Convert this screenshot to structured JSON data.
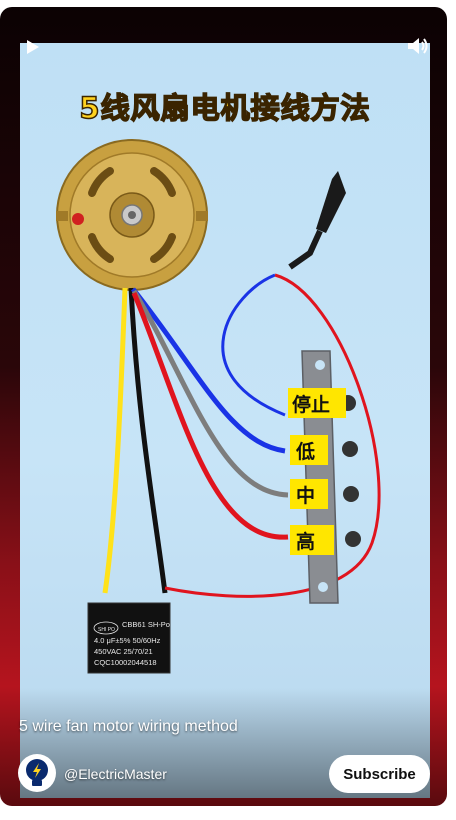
{
  "video": {
    "title_art": "5线风扇电机接线方法",
    "switch_labels": [
      "停止",
      "低",
      "中",
      "高"
    ],
    "capacitor_lines": [
      "CBB61 SH-Po",
      "4.0 μF±5% 50/60Hz",
      "450VAC 25/70/21",
      "CQC10002044518"
    ],
    "capacitor_brand": "SHI PO"
  },
  "controls": {
    "play_icon": "play-icon",
    "volume_icon": "volume-icon"
  },
  "caption": "5 wire fan motor wiring method",
  "channel": {
    "handle": "@ElectricMaster",
    "avatar_icon": "lightbulb-icon"
  },
  "subscribe_label": "Subscribe",
  "colors": {
    "wire_blue": "#1a33e6",
    "wire_red": "#e0141e",
    "wire_grey": "#7d7d7d",
    "wire_yellow": "#ffe21a",
    "wire_black": "#111111",
    "label_bg": "#ffe600",
    "title_yellow": "#ffd21e"
  }
}
